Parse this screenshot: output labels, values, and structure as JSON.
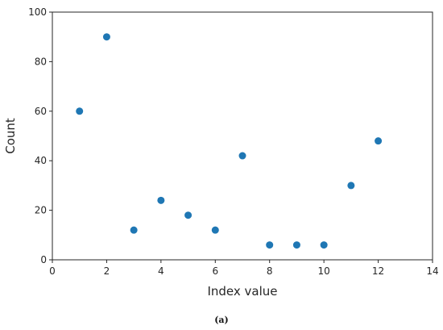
{
  "caption": "(a)",
  "colors": {
    "marker": "#1f77b4",
    "axis": "#262626"
  },
  "chart_data": {
    "type": "scatter",
    "title": "",
    "xlabel": "Index value",
    "ylabel": "Count",
    "xlim": [
      0,
      14
    ],
    "ylim": [
      0,
      100
    ],
    "xticks": [
      0,
      2,
      4,
      6,
      8,
      10,
      12,
      14
    ],
    "yticks": [
      0,
      20,
      40,
      60,
      80,
      100
    ],
    "grid": false,
    "x": [
      1,
      2,
      3,
      4,
      5,
      6,
      7,
      8,
      9,
      10,
      11,
      12
    ],
    "y": [
      60,
      90,
      12,
      24,
      18,
      12,
      42,
      6,
      6,
      6,
      30,
      48
    ]
  }
}
